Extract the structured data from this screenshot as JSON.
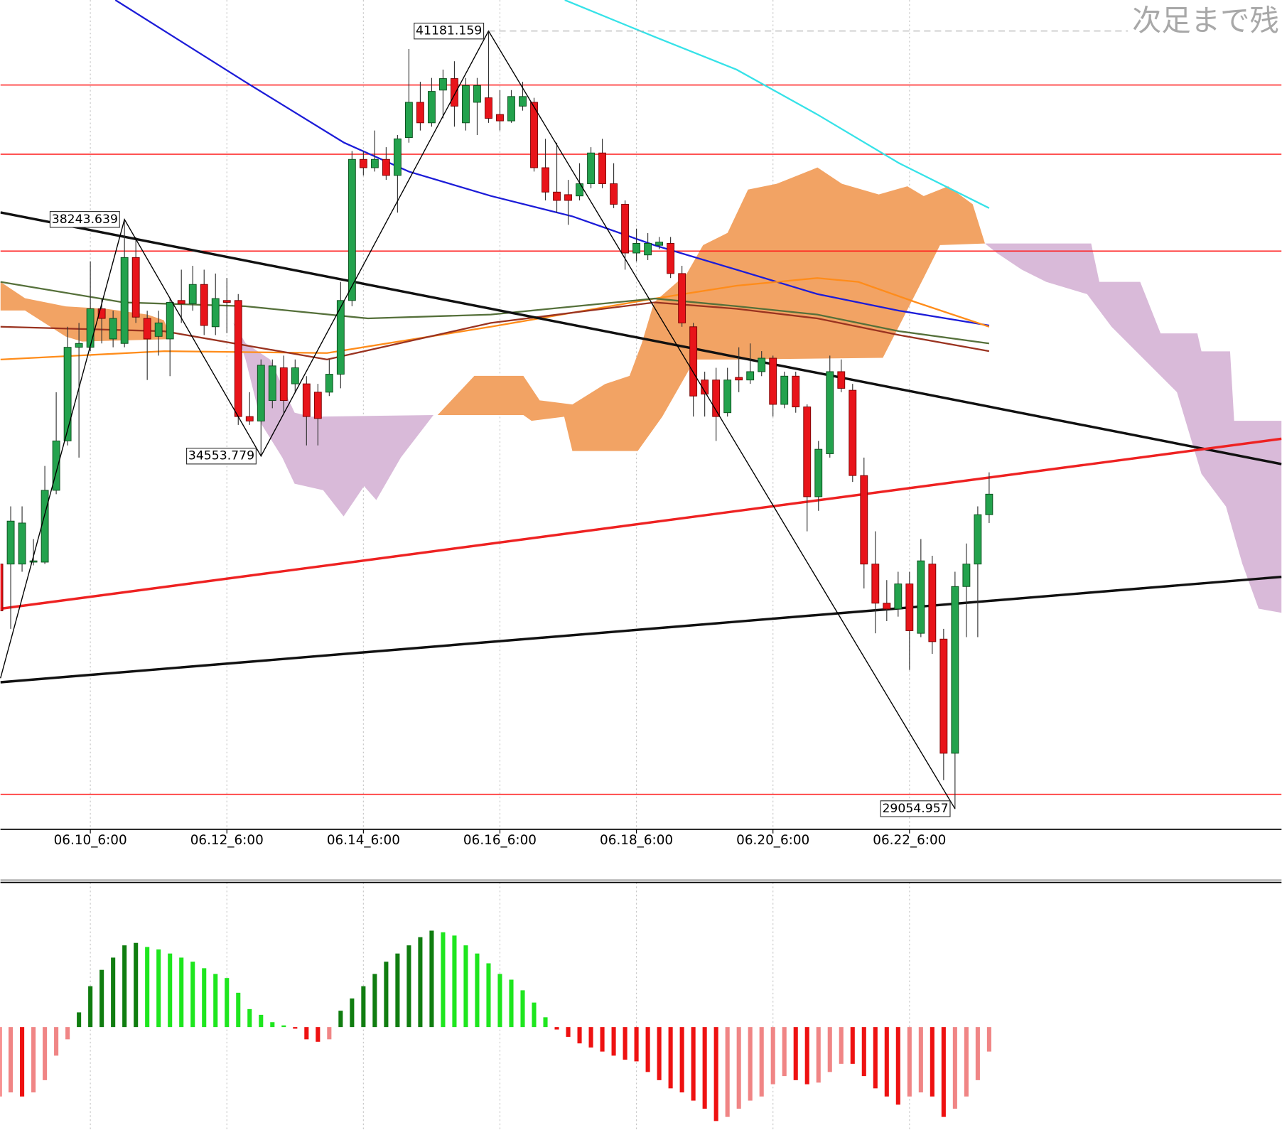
{
  "chart_data": [
    {
      "type": "candlestick",
      "annotation": "次足まで残",
      "categories": [
        null,
        null,
        null,
        null,
        null,
        null,
        null,
        null,
        "06.10_6:00",
        null,
        null,
        null,
        null,
        null,
        null,
        null,
        null,
        null,
        null,
        null,
        "06.12_6:00",
        null,
        null,
        null,
        null,
        null,
        null,
        null,
        null,
        null,
        null,
        null,
        "06.14_6:00",
        null,
        null,
        null,
        null,
        null,
        null,
        null,
        null,
        null,
        null,
        null,
        "06.16_6:00",
        null,
        null,
        null,
        null,
        null,
        null,
        null,
        null,
        null,
        null,
        null,
        "06.18_6:00",
        null,
        null,
        null,
        null,
        null,
        null,
        null,
        null,
        null,
        null,
        null,
        "06.20_6:00",
        null,
        null,
        null,
        null,
        null,
        null,
        null,
        null,
        null,
        null,
        null,
        "06.22_6:00",
        null,
        null,
        null,
        null,
        null,
        null,
        null
      ],
      "ohlc": [
        [
          32870,
          33000,
          31860,
          32140
        ],
        [
          32870,
          33770,
          31860,
          33540
        ],
        [
          32870,
          33770,
          32750,
          33510
        ],
        [
          32900,
          33260,
          32850,
          32920
        ],
        [
          32900,
          34400,
          32870,
          34020
        ],
        [
          34020,
          35550,
          33960,
          34790
        ],
        [
          34790,
          36570,
          34720,
          36250
        ],
        [
          36250,
          36630,
          34530,
          36310
        ],
        [
          36250,
          37590,
          36190,
          36850
        ],
        [
          36850,
          37010,
          36310,
          36700
        ],
        [
          36380,
          36820,
          36250,
          36700
        ],
        [
          36310,
          38240,
          36250,
          37650
        ],
        [
          37650,
          37970,
          36630,
          36720
        ],
        [
          36700,
          36820,
          35740,
          36380
        ],
        [
          36420,
          36820,
          36120,
          36630
        ],
        [
          36380,
          37010,
          35800,
          36950
        ],
        [
          36980,
          37460,
          36630,
          36930
        ],
        [
          36930,
          37520,
          36820,
          37230
        ],
        [
          37230,
          37460,
          36440,
          36590
        ],
        [
          36570,
          37400,
          36440,
          37010
        ],
        [
          36980,
          37330,
          36470,
          36950
        ],
        [
          36980,
          37080,
          35040,
          35170
        ],
        [
          35170,
          35550,
          35040,
          35100
        ],
        [
          35100,
          36060,
          34550,
          35970
        ],
        [
          35420,
          36060,
          35300,
          35960
        ],
        [
          35930,
          36120,
          35230,
          35420
        ],
        [
          35680,
          36060,
          35550,
          35930
        ],
        [
          35680,
          35800,
          34720,
          35170
        ],
        [
          35550,
          35680,
          34720,
          35140
        ],
        [
          35550,
          36060,
          35490,
          35830
        ],
        [
          35830,
          37270,
          35610,
          36980
        ],
        [
          36980,
          39310,
          36890,
          39180
        ],
        [
          39180,
          39310,
          38930,
          39050
        ],
        [
          39050,
          39630,
          38990,
          39180
        ],
        [
          39180,
          39370,
          38860,
          38930
        ],
        [
          38930,
          39560,
          38350,
          39500
        ],
        [
          39520,
          40900,
          39440,
          40070
        ],
        [
          40070,
          40390,
          39630,
          39750
        ],
        [
          39750,
          40450,
          39690,
          40240
        ],
        [
          40260,
          40580,
          39820,
          40440
        ],
        [
          40440,
          40710,
          39690,
          40010
        ],
        [
          39750,
          40450,
          39630,
          40330
        ],
        [
          40070,
          40450,
          39560,
          40330
        ],
        [
          40140,
          41180,
          39750,
          39820
        ],
        [
          39880,
          40260,
          39630,
          39780
        ],
        [
          39780,
          40260,
          39750,
          40160
        ],
        [
          40010,
          40390,
          39940,
          40160
        ],
        [
          40070,
          40140,
          38990,
          39050
        ],
        [
          39050,
          39500,
          38540,
          38670
        ],
        [
          38670,
          39440,
          38350,
          38540
        ],
        [
          38630,
          38860,
          38160,
          38540
        ],
        [
          38610,
          39120,
          38540,
          38800
        ],
        [
          38800,
          39370,
          38730,
          39280
        ],
        [
          39280,
          39500,
          38730,
          38800
        ],
        [
          38800,
          39120,
          38420,
          38480
        ],
        [
          38480,
          38540,
          37460,
          37720
        ],
        [
          37720,
          38100,
          37590,
          37870
        ],
        [
          37690,
          38030,
          37610,
          37870
        ],
        [
          37840,
          37970,
          37780,
          37890
        ],
        [
          37870,
          37970,
          37330,
          37400
        ],
        [
          37400,
          37520,
          36570,
          36630
        ],
        [
          36570,
          36630,
          35170,
          35490
        ],
        [
          35740,
          35870,
          35170,
          35520
        ],
        [
          35740,
          35930,
          34790,
          35170
        ],
        [
          35230,
          35930,
          35170,
          35740
        ],
        [
          35780,
          36250,
          35550,
          35740
        ],
        [
          35740,
          36310,
          35680,
          35870
        ],
        [
          35870,
          36190,
          35800,
          36080
        ],
        [
          36080,
          36120,
          35170,
          35360
        ],
        [
          35360,
          35870,
          35300,
          35800
        ],
        [
          35800,
          35870,
          35230,
          35320
        ],
        [
          35320,
          35360,
          33380,
          33920
        ],
        [
          33920,
          34790,
          33700,
          34660
        ],
        [
          34590,
          36120,
          34530,
          35870
        ],
        [
          35870,
          36060,
          35550,
          35610
        ],
        [
          35580,
          35680,
          34150,
          34250
        ],
        [
          34250,
          34530,
          32490,
          32870
        ],
        [
          32870,
          33380,
          31790,
          32260
        ],
        [
          32260,
          32620,
          31980,
          32170
        ],
        [
          32170,
          32750,
          32050,
          32560
        ],
        [
          32560,
          32750,
          31220,
          31830
        ],
        [
          31790,
          33260,
          31730,
          32920
        ],
        [
          32870,
          33000,
          31470,
          31660
        ],
        [
          31700,
          31860,
          29500,
          29920
        ],
        [
          29920,
          32750,
          29050,
          32520
        ],
        [
          32520,
          33190,
          31730,
          32870
        ],
        [
          32870,
          33770,
          31730,
          33640
        ],
        [
          33640,
          34300,
          33510,
          33960
        ]
      ],
      "up_color": "#23a24d",
      "down_color": "#e8141a",
      "xlim": [
        0.1,
        112.7
      ],
      "ylim": [
        28734,
        41665
      ],
      "levels": [
        40340,
        39260,
        37750,
        29280
      ],
      "level_color": "#ff1a1a",
      "series": [
        {
          "color": "#1c1cd8",
          "x": [
            10.2,
            21.6,
            30.3,
            36.0,
            43.2,
            50.4,
            57.6,
            64.8,
            71.9,
            79.1,
            87.0
          ],
          "values": [
            41665,
            40390,
            39440,
            38990,
            38610,
            38290,
            37840,
            37460,
            37080,
            36820,
            36590
          ]
        },
        {
          "color": "#36e2e8",
          "x": [
            49.7,
            57.6,
            64.8,
            71.9,
            79.1,
            87.0
          ],
          "values": [
            41665,
            41090,
            40580,
            39880,
            39120,
            38420
          ]
        },
        {
          "color": "#ff8c1a",
          "x": [
            0.1,
            14.5,
            28.8,
            43.2,
            57.6,
            64.8,
            71.9,
            75.5,
            80.6,
            87.0
          ],
          "values": [
            36060,
            36190,
            36160,
            36570,
            37010,
            37210,
            37330,
            37270,
            36950,
            36570
          ]
        },
        {
          "color": "#55703a",
          "x": [
            0.1,
            10.9,
            21.6,
            32.4,
            43.2,
            57.6,
            64.8,
            71.9,
            79.1,
            87.0
          ],
          "values": [
            37270,
            36950,
            36890,
            36700,
            36760,
            37010,
            36890,
            36760,
            36500,
            36310
          ]
        },
        {
          "color": "#9a3320",
          "x": [
            0.1,
            14.5,
            28.8,
            43.2,
            57.6,
            64.8,
            71.9,
            79.1,
            87.0
          ],
          "values": [
            36570,
            36500,
            36060,
            36630,
            36950,
            36850,
            36700,
            36440,
            36190
          ]
        }
      ],
      "trendlines": [
        {
          "color": "#111111",
          "x": [
            0.1,
            112.7
          ],
          "values": [
            38353,
            34429
          ]
        },
        {
          "color": "#111111",
          "x": [
            0.1,
            112.7
          ],
          "values": [
            31027,
            32671
          ]
        },
        {
          "color": "#ee2222",
          "x": [
            0.1,
            112.7
          ],
          "values": [
            32174,
            34824
          ]
        }
      ],
      "zigzag": {
        "x": [
          0.1,
          11,
          23,
          43,
          84
        ],
        "values": [
          31090,
          38243.639,
          34553.779,
          41181.159,
          29054.957
        ]
      }
    },
    {
      "type": "histogram",
      "values": [
        -85,
        -80,
        -85,
        -80,
        -65,
        -35,
        -15,
        18,
        50,
        70,
        85,
        100,
        103,
        98,
        95,
        90,
        85,
        80,
        72,
        65,
        60,
        42,
        22,
        15,
        6,
        2,
        -2,
        -15,
        -18,
        -15,
        20,
        35,
        50,
        65,
        80,
        90,
        100,
        110,
        118,
        116,
        112,
        100,
        90,
        78,
        65,
        58,
        45,
        30,
        12,
        -3,
        -12,
        -20,
        -25,
        -30,
        -35,
        -40,
        -42,
        -55,
        -65,
        -75,
        -80,
        -90,
        -100,
        -115,
        -110,
        -100,
        -90,
        -85,
        -70,
        -60,
        -65,
        -70,
        -68,
        -55,
        -45,
        -45,
        -60,
        -75,
        -85,
        -95,
        -85,
        -80,
        -85,
        -110,
        -100,
        -85,
        -65,
        -30
      ],
      "ylim": [
        -126,
        177
      ],
      "colors": {
        "up_rising": "#107d10",
        "up_falling": "#1ee61e",
        "down_falling": "#ee1111",
        "down_rising": "#f08585"
      }
    }
  ]
}
